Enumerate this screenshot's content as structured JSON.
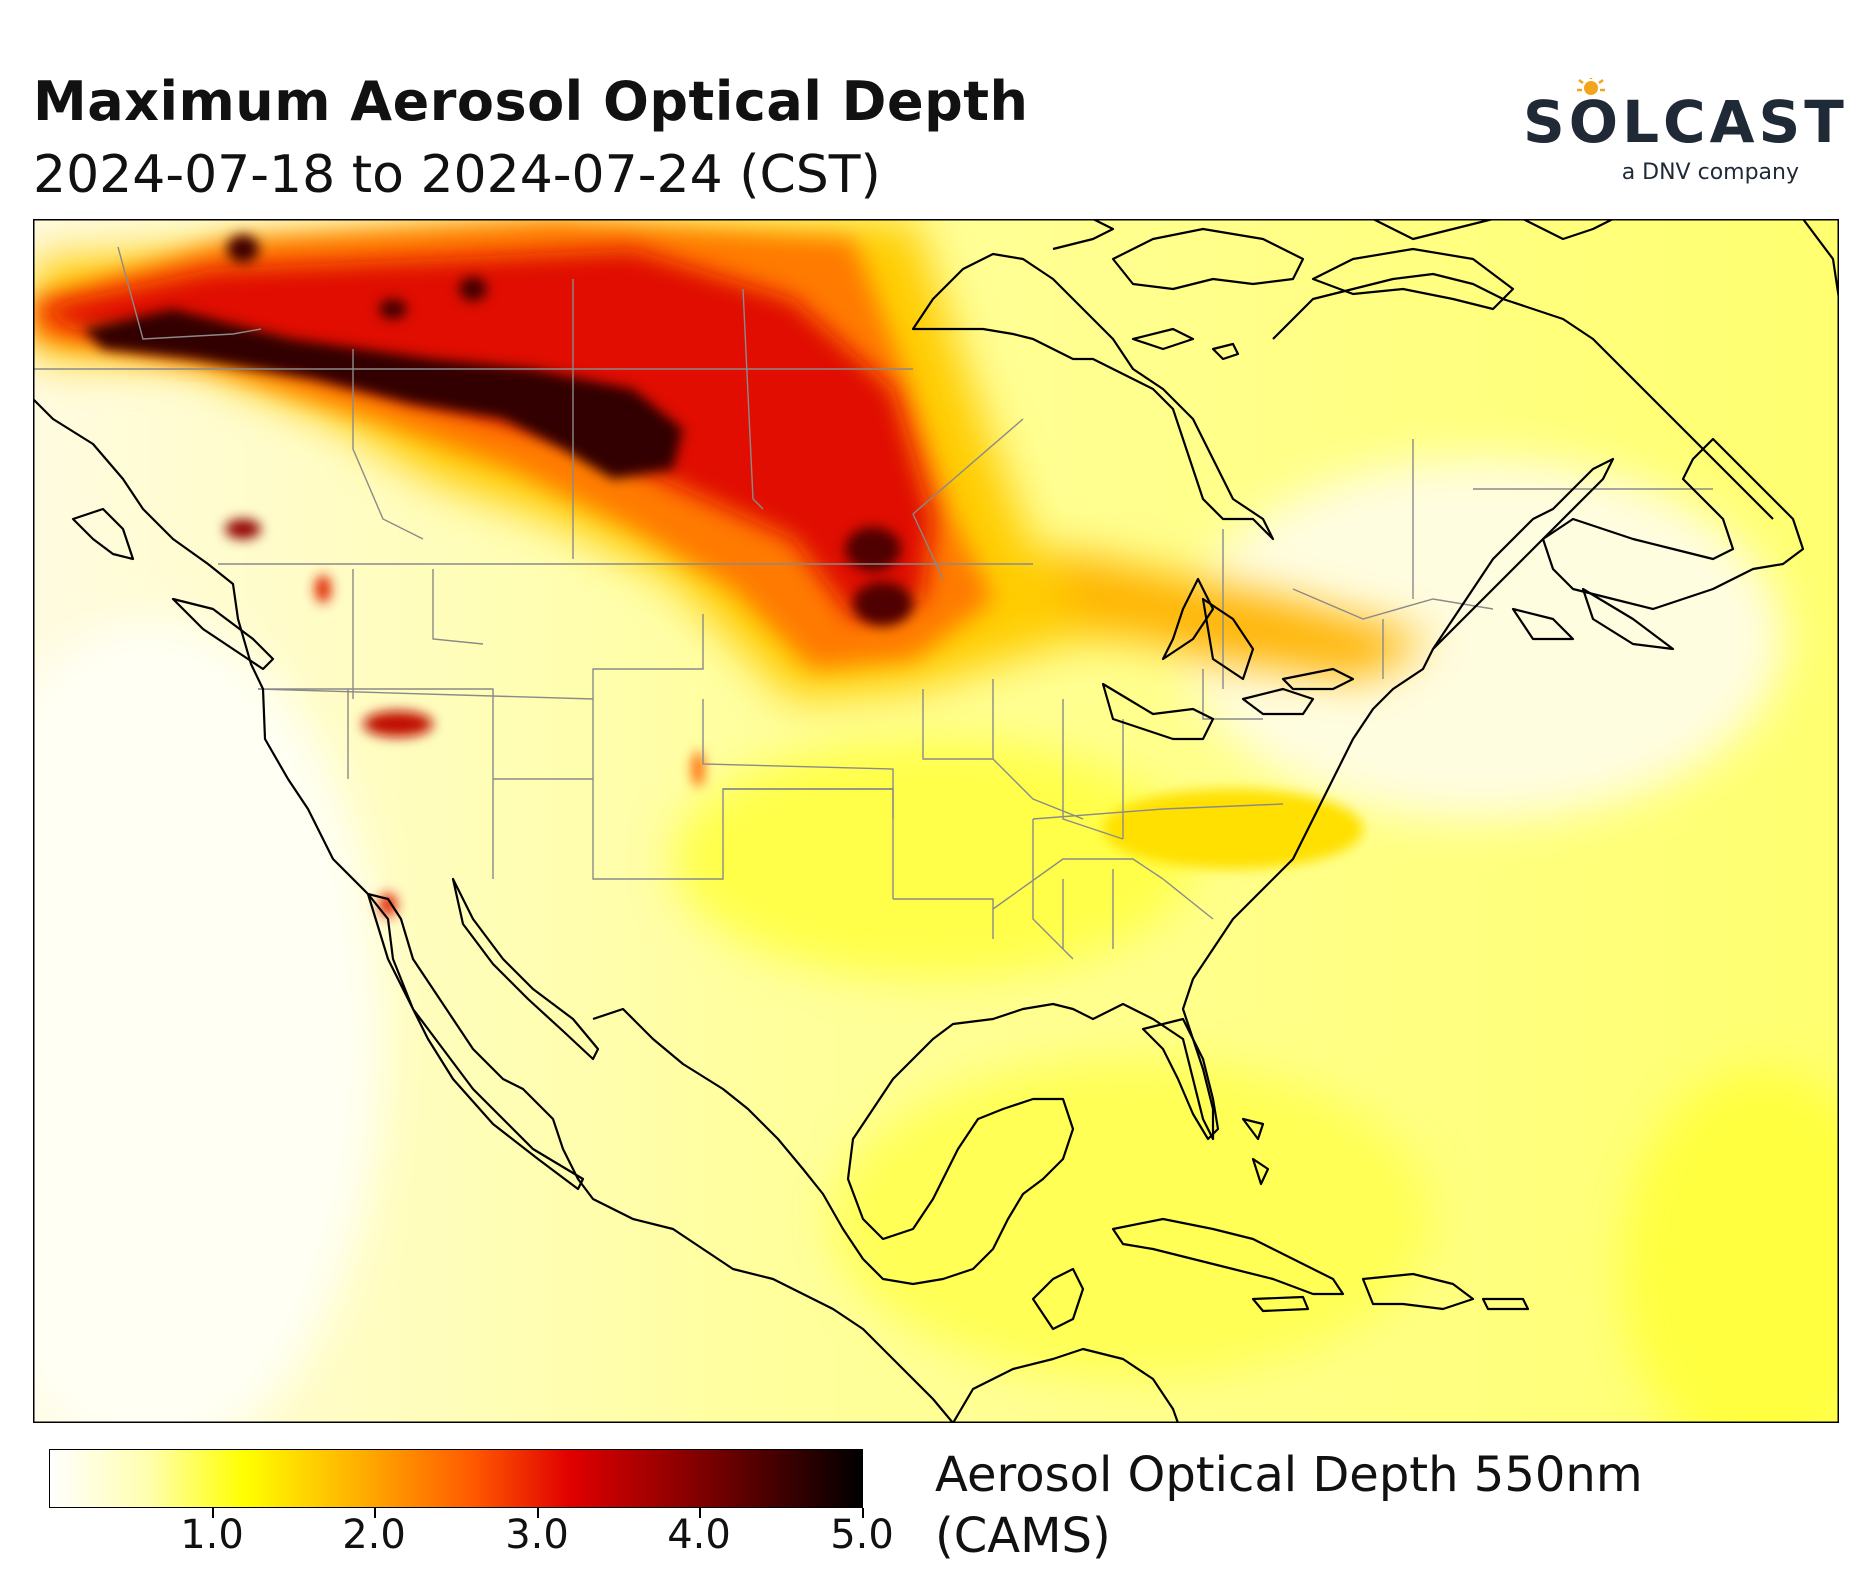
{
  "header": {
    "title": "Maximum Aerosol Optical Depth",
    "subtitle": "2024-07-18 to 2024-07-24 (CST)"
  },
  "logo": {
    "name": "SOLCAST",
    "tagline": "a DNV company",
    "brand_color": "#1f2a36",
    "sun_color": "#f2a51a"
  },
  "map": {
    "region": "North America",
    "colormap": [
      "#ffffff",
      "#ffff66",
      "#ffff00",
      "#ff9900",
      "#ff3300",
      "#cc0000",
      "#660000",
      "#000000"
    ],
    "land_outline_color": "#000000",
    "border_color": "#888888"
  },
  "colorbar": {
    "min": 0,
    "max": 5,
    "ticks": [
      "1.0",
      "2.0",
      "3.0",
      "4.0",
      "5.0"
    ],
    "label_line1": "Aerosol Optical Depth 550nm",
    "label_line2": "(CAMS)"
  }
}
